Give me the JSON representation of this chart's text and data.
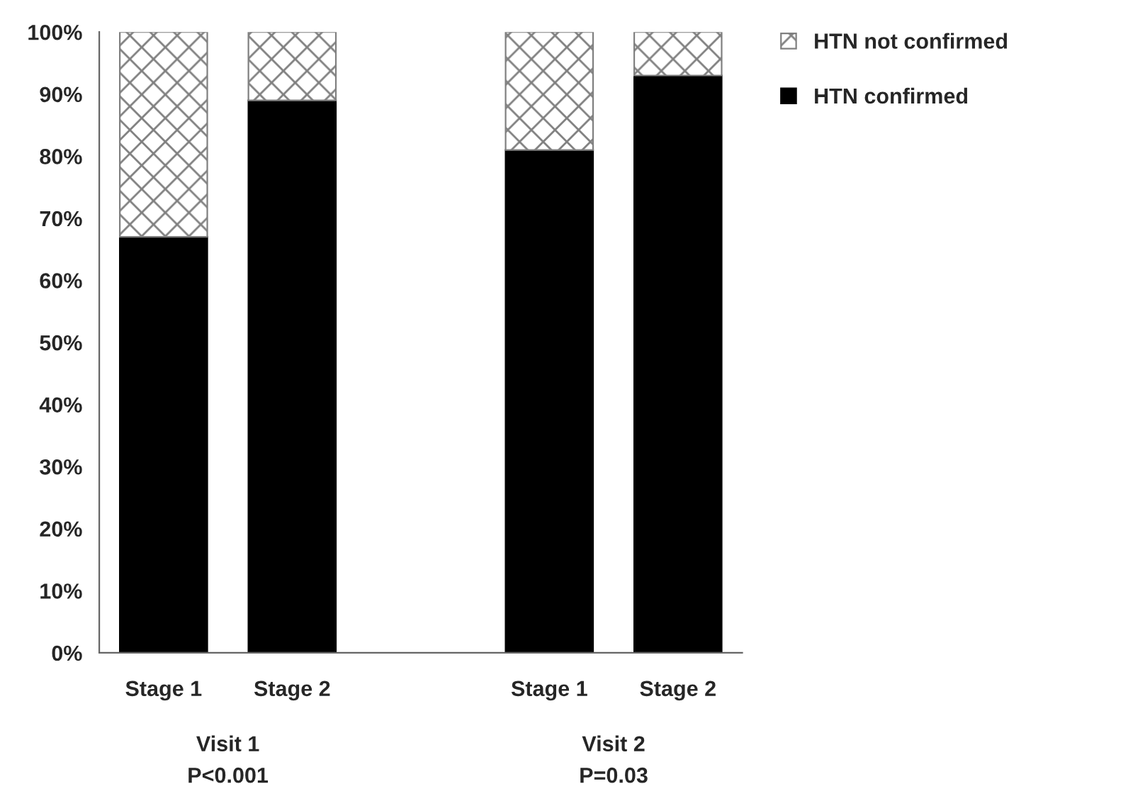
{
  "chart_data": {
    "type": "bar",
    "stacked": true,
    "categories": [
      "Stage 1",
      "Stage 2",
      null,
      "Stage 1",
      "Stage 2"
    ],
    "series": [
      {
        "name": "HTN confirmed",
        "color": "#000000",
        "values": [
          67,
          89,
          null,
          81,
          93
        ]
      },
      {
        "name": "HTN not confirmed",
        "color": "#808080",
        "values": [
          33,
          11,
          null,
          19,
          7
        ]
      }
    ],
    "ylim": [
      0,
      100
    ],
    "yticks": [
      {
        "value": 0,
        "label": "0%"
      },
      {
        "value": 10,
        "label": "10%"
      },
      {
        "value": 20,
        "label": "20%"
      },
      {
        "value": 30,
        "label": "30%"
      },
      {
        "value": 40,
        "label": "40%"
      },
      {
        "value": 50,
        "label": "50%"
      },
      {
        "value": 60,
        "label": "60%"
      },
      {
        "value": 70,
        "label": "70%"
      },
      {
        "value": 80,
        "label": "80%"
      },
      {
        "value": 90,
        "label": "90%"
      },
      {
        "value": 100,
        "label": "100%"
      }
    ],
    "grid": false,
    "legend": "top right",
    "annotations": [
      "Visit 1",
      "P<0.001",
      "Visit 2",
      "P=0.03"
    ]
  }
}
